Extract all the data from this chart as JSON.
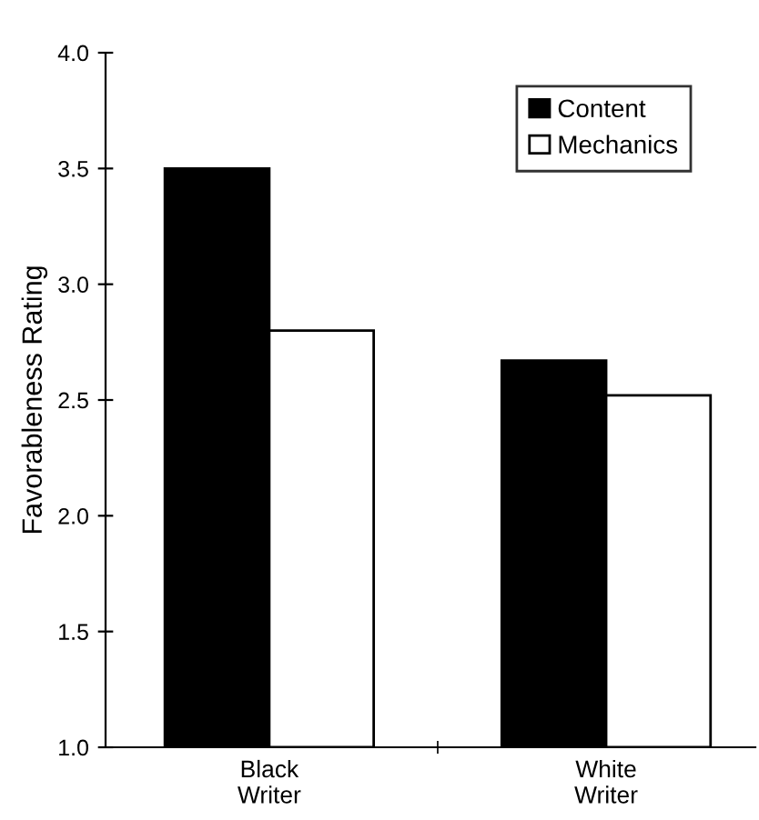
{
  "chart_data": {
    "type": "bar",
    "ylabel": "Favorableness Rating",
    "categories": [
      "Black\nWriter",
      "White\nWriter"
    ],
    "series": [
      {
        "name": "Content",
        "color": "#000000",
        "values": [
          3.5,
          2.67
        ]
      },
      {
        "name": "Mechanics",
        "color": "#ffffff",
        "values": [
          2.8,
          2.52
        ]
      }
    ],
    "ylim": [
      1.0,
      4.0
    ],
    "yticks": [
      {
        "value": 1.0,
        "label": "1.0"
      },
      {
        "value": 1.5,
        "label": "1.5"
      },
      {
        "value": 2.0,
        "label": "2.0"
      },
      {
        "value": 2.5,
        "label": "2.5"
      },
      {
        "value": 3.0,
        "label": "3.0"
      },
      {
        "value": 3.5,
        "label": "3.5"
      },
      {
        "value": 4.0,
        "label": "4.0"
      }
    ],
    "grid": false,
    "legend": "top right"
  }
}
